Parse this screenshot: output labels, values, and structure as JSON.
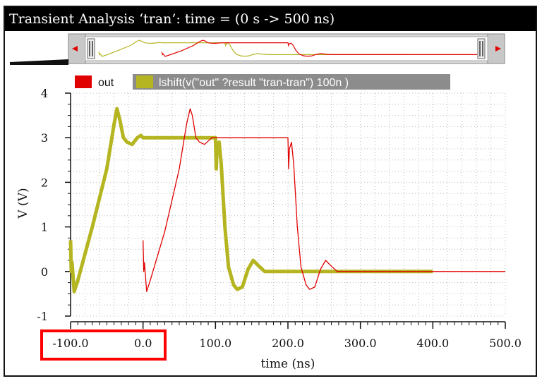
{
  "window": {
    "title": "Transient Analysis ‘tran’: time = (0 s -> 500 ns)"
  },
  "colors": {
    "out": "#e00000",
    "lshift": "#b5b522",
    "legend_bar": "#8c8c8c",
    "grid": "#bcbcbc",
    "highlight_box": "#ff0000"
  },
  "legend": [
    {
      "label": "out",
      "color": "#e00000"
    },
    {
      "label": "lshift(v(\"out\" ?result \"tran-tran\") 100n )",
      "color": "#b5b522"
    }
  ],
  "chart_data": {
    "type": "line",
    "title": "Transient Analysis ‘tran’: time = (0 s -> 500 ns)",
    "xlabel": "time (ns)",
    "ylabel": "V (V)",
    "xlim": [
      -100,
      500
    ],
    "ylim": [
      -1,
      4
    ],
    "xticks": [
      -100,
      0,
      100,
      200,
      300,
      400,
      500
    ],
    "xtick_labels": [
      "-100.0",
      "0.0",
      "100.0",
      "200.0",
      "300.0",
      "400.0",
      "500.0"
    ],
    "yticks": [
      -1,
      0,
      1,
      2,
      3,
      4
    ],
    "ytick_labels": [
      "-1",
      "0",
      "1",
      "2",
      "3",
      "4"
    ],
    "grid": true,
    "legend_position": "top",
    "series": [
      {
        "name": "out",
        "color": "#e00000",
        "points": [
          [
            0,
            0.7
          ],
          [
            1,
            0.0
          ],
          [
            2,
            0.2
          ],
          [
            5,
            -0.45
          ],
          [
            10,
            -0.2
          ],
          [
            30,
            0.9
          ],
          [
            50,
            2.3
          ],
          [
            60,
            3.3
          ],
          [
            65,
            3.65
          ],
          [
            68,
            3.5
          ],
          [
            73,
            3.0
          ],
          [
            78,
            2.9
          ],
          [
            85,
            2.85
          ],
          [
            95,
            3.0
          ],
          [
            100,
            3.0
          ],
          [
            150,
            3.0
          ],
          [
            200,
            3.0
          ],
          [
            201,
            2.3
          ],
          [
            202,
            2.75
          ],
          [
            205,
            2.9
          ],
          [
            208,
            2.4
          ],
          [
            213,
            1.0
          ],
          [
            218,
            0.1
          ],
          [
            225,
            -0.3
          ],
          [
            230,
            -0.4
          ],
          [
            237,
            -0.35
          ],
          [
            245,
            0.05
          ],
          [
            252,
            0.25
          ],
          [
            258,
            0.15
          ],
          [
            268,
            0.0
          ],
          [
            300,
            0.0
          ],
          [
            400,
            0.0
          ],
          [
            500,
            0.0
          ]
        ]
      },
      {
        "name": "lshift(v(\"out\" ?result \"tran-tran\") 100n )",
        "color": "#b5b522",
        "points": [
          [
            -100,
            0.7
          ],
          [
            -99,
            0.0
          ],
          [
            -98,
            0.2
          ],
          [
            -95,
            -0.45
          ],
          [
            -90,
            -0.2
          ],
          [
            -70,
            1.0
          ],
          [
            -50,
            2.3
          ],
          [
            -40,
            3.3
          ],
          [
            -36,
            3.65
          ],
          [
            -32,
            3.4
          ],
          [
            -27,
            3.0
          ],
          [
            -22,
            2.9
          ],
          [
            -15,
            2.85
          ],
          [
            -8,
            3.0
          ],
          [
            -3,
            3.05
          ],
          [
            0,
            3.0
          ],
          [
            100,
            3.0
          ],
          [
            101,
            2.3
          ],
          [
            102,
            2.75
          ],
          [
            105,
            2.9
          ],
          [
            108,
            2.4
          ],
          [
            113,
            1.0
          ],
          [
            118,
            0.1
          ],
          [
            125,
            -0.3
          ],
          [
            130,
            -0.4
          ],
          [
            137,
            -0.35
          ],
          [
            145,
            0.05
          ],
          [
            152,
            0.25
          ],
          [
            158,
            0.15
          ],
          [
            168,
            0.0
          ],
          [
            250,
            0.0
          ],
          [
            300,
            0.0
          ],
          [
            400,
            0.0
          ]
        ]
      }
    ]
  }
}
